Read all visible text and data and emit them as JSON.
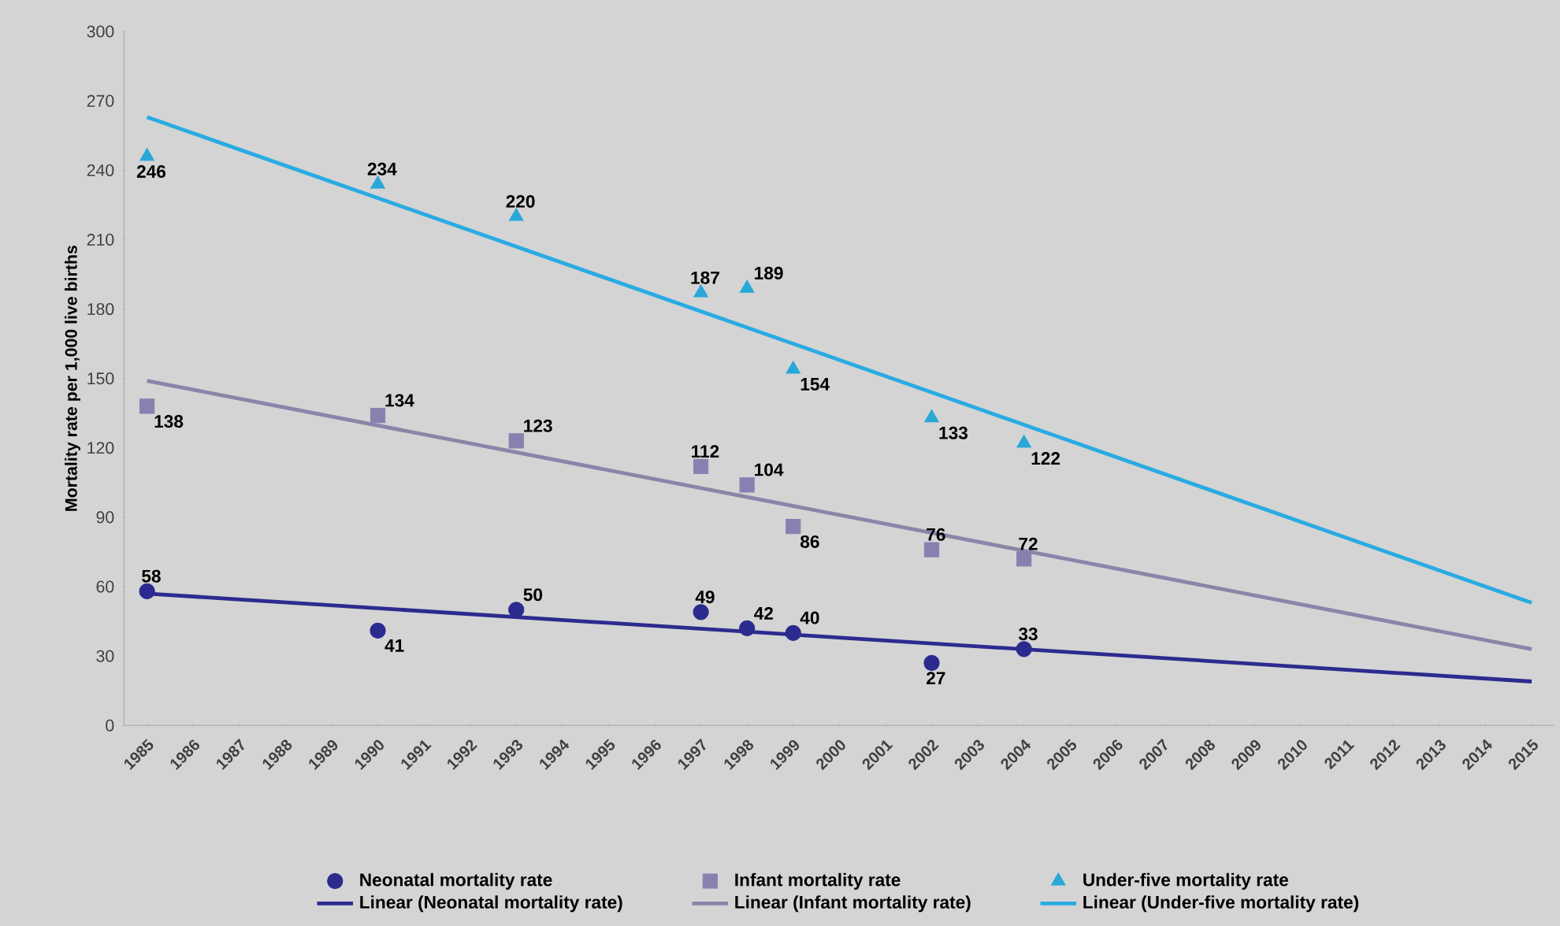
{
  "chart_data": {
    "type": "scatter",
    "ylabel": "Mortality rate per 1,000 live births",
    "xlim": [
      1984.5,
      2015.5
    ],
    "xticks": [
      1985,
      1986,
      1987,
      1988,
      1989,
      1990,
      1991,
      1992,
      1993,
      1994,
      1995,
      1996,
      1997,
      1998,
      1999,
      2000,
      2001,
      2002,
      2003,
      2004,
      2005,
      2006,
      2007,
      2008,
      2009,
      2010,
      2011,
      2012,
      2013,
      2014,
      2015
    ],
    "ylim": [
      0,
      300
    ],
    "yticks": [
      0,
      30,
      60,
      90,
      120,
      150,
      180,
      210,
      240,
      270,
      300
    ],
    "legend": "bottom",
    "series": [
      {
        "name": "Neonatal mortality rate",
        "marker": "circle",
        "color": "#2b2b8f",
        "x": [
          1985,
          1990,
          1993,
          1997,
          1998,
          1999,
          2002,
          2004
        ],
        "values": [
          58,
          41,
          50,
          49,
          42,
          40,
          27,
          33
        ],
        "value_labels": [
          "58",
          "41",
          "50",
          "49",
          "42",
          "40",
          "27",
          "33"
        ]
      },
      {
        "name": "Infant mortality rate",
        "marker": "square",
        "color": "#8a80b0",
        "x": [
          1985,
          1990,
          1993,
          1997,
          1998,
          1999,
          2002,
          2004
        ],
        "values": [
          138,
          134,
          123,
          112,
          104,
          86,
          76,
          72
        ],
        "value_labels": [
          "138",
          "134",
          "123",
          "112",
          "104",
          "86",
          "76",
          "72"
        ]
      },
      {
        "name": "Under-five mortality rate",
        "marker": "triangle",
        "color": "#29a8d8",
        "x": [
          1985,
          1990,
          1993,
          1997,
          1998,
          1999,
          2002,
          2004
        ],
        "values": [
          246,
          234,
          220,
          187,
          189,
          154,
          133,
          122
        ],
        "value_labels": [
          "246",
          "234",
          "220",
          "187",
          "189",
          "154",
          "133",
          "122"
        ]
      },
      {
        "name": "Linear (Neonatal mortality rate)",
        "type": "line",
        "color": "#2b2b8f",
        "x": [
          1985,
          2015
        ],
        "values": [
          57,
          19
        ]
      },
      {
        "name": "Linear (Infant mortality rate)",
        "type": "line",
        "color": "#8a85a8",
        "x": [
          1985,
          2015
        ],
        "values": [
          149,
          33
        ]
      },
      {
        "name": "Linear (Under-five mortality rate)",
        "type": "line",
        "color": "#29abe2",
        "x": [
          1985,
          2015
        ],
        "values": [
          263,
          53
        ]
      }
    ]
  }
}
